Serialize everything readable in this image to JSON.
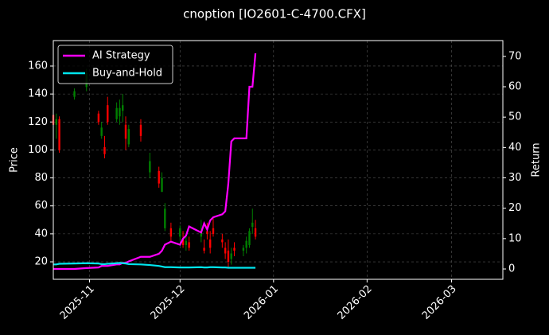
{
  "chart_data": {
    "type": "candlestick",
    "title": "cnoption [IO2601-C-4700.CFX]",
    "ylabel": "Price",
    "y2label": "Return",
    "x": [
      "2025-10-20",
      "2025-10-21",
      "2025-10-22",
      "2025-10-27",
      "2025-10-31",
      "2025-11-04",
      "2025-11-05",
      "2025-11-06",
      "2025-11-07",
      "2025-11-10",
      "2025-11-11",
      "2025-11-12",
      "2025-11-13",
      "2025-11-14",
      "2025-11-18",
      "2025-11-21",
      "2025-11-24",
      "2025-11-25",
      "2025-11-26",
      "2025-11-28",
      "2025-12-01",
      "2025-12-02",
      "2025-12-03",
      "2025-12-04",
      "2025-12-08",
      "2025-12-09",
      "2025-12-10",
      "2025-12-11",
      "2025-12-12",
      "2025-12-15",
      "2025-12-16",
      "2025-12-17",
      "2025-12-18",
      "2025-12-19",
      "2025-12-22",
      "2025-12-23",
      "2025-12-24",
      "2025-12-25",
      "2025-12-26"
    ],
    "open": [
      125,
      118,
      122,
      138,
      145,
      126,
      110,
      102,
      132,
      122,
      124,
      128,
      118,
      104,
      118,
      84,
      85,
      70,
      44,
      44,
      38,
      36,
      32,
      34,
      38,
      30,
      42,
      36,
      44,
      36,
      30,
      28,
      22,
      30,
      28,
      30,
      32,
      45,
      44
    ],
    "high": [
      132,
      126,
      124,
      144,
      158,
      128,
      120,
      110,
      138,
      134,
      136,
      140,
      124,
      118,
      122,
      98,
      88,
      84,
      62,
      48,
      46,
      42,
      38,
      38,
      50,
      36,
      48,
      42,
      52,
      40,
      34,
      36,
      30,
      34,
      32,
      38,
      44,
      58,
      50
    ],
    "low": [
      115,
      108,
      98,
      136,
      142,
      118,
      108,
      94,
      118,
      120,
      118,
      120,
      100,
      102,
      106,
      80,
      73,
      70,
      42,
      34,
      35,
      30,
      28,
      28,
      34,
      26,
      36,
      26,
      38,
      30,
      22,
      16,
      18,
      24,
      24,
      26,
      30,
      40,
      36
    ],
    "close": [
      118,
      122,
      100,
      142,
      155,
      120,
      116,
      97,
      120,
      130,
      130,
      132,
      108,
      115,
      110,
      92,
      76,
      80,
      58,
      38,
      44,
      32,
      35,
      30,
      42,
      28,
      40,
      30,
      40,
      34,
      26,
      20,
      26,
      28,
      30,
      35,
      42,
      48,
      38
    ],
    "up_color": "#008000",
    "down_color": "#ff0000",
    "series": [
      {
        "name": "AI Strategy",
        "color": "#ff00ff",
        "axis": "y2",
        "values": [
          0,
          0,
          0,
          0,
          0.3,
          0.5,
          1,
          1,
          1,
          1.5,
          1.5,
          2,
          2,
          2.5,
          4,
          4,
          5,
          6,
          8,
          9,
          8,
          10,
          11,
          14,
          12,
          15,
          13,
          16,
          17,
          18,
          19,
          28,
          42,
          43,
          43,
          43,
          60,
          60,
          71
        ]
      },
      {
        "name": "Buy-and-Hold",
        "color": "#00e5ee",
        "axis": "y2",
        "values": [
          1.5,
          1.5,
          1.7,
          1.8,
          1.9,
          1.8,
          1.6,
          1.6,
          1.7,
          1.9,
          2,
          1.9,
          1.8,
          1.6,
          1.5,
          1.3,
          1.0,
          0.8,
          0.6,
          0.6,
          0.5,
          0.5,
          0.5,
          0.5,
          0.6,
          0.5,
          0.5,
          0.6,
          0.6,
          0.5,
          0.5,
          0.4,
          0.4,
          0.4,
          0.4,
          0.4,
          0.4,
          0.4,
          0.4
        ]
      }
    ],
    "xlim": [
      "2025-10-20",
      "2026-03-18"
    ],
    "xticks": [
      {
        "value": "2025-11-01",
        "label": "2025-11"
      },
      {
        "value": "2025-12-01",
        "label": "2025-12"
      },
      {
        "value": "2026-01-01",
        "label": "2026-01"
      },
      {
        "value": "2026-02-01",
        "label": "2026-02"
      },
      {
        "value": "2026-03-01",
        "label": "2026-03"
      }
    ],
    "ylim": [
      7.5,
      178.2
    ],
    "yticks": [
      20,
      40,
      60,
      80,
      100,
      120,
      140,
      160
    ],
    "y2lim": [
      -3.4,
      75.2
    ],
    "y2ticks": [
      0,
      10,
      20,
      30,
      40,
      50,
      60,
      70
    ],
    "grid": true,
    "legend": "upper left"
  }
}
